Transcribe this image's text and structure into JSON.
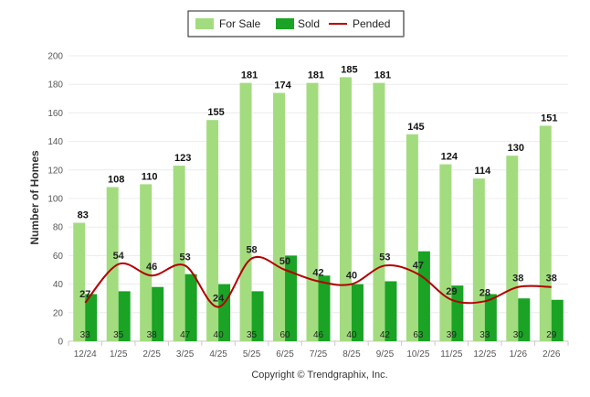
{
  "chart_data": {
    "type": "bar",
    "title": "",
    "xlabel": "",
    "ylabel": "Number of Homes",
    "ylim": [
      0,
      200
    ],
    "yticks": [
      0,
      20,
      40,
      60,
      80,
      100,
      120,
      140,
      160,
      180,
      200
    ],
    "categories": [
      "12/24",
      "1/25",
      "2/25",
      "3/25",
      "4/25",
      "5/25",
      "6/25",
      "7/25",
      "8/25",
      "9/25",
      "10/25",
      "11/25",
      "12/25",
      "1/26",
      "2/26"
    ],
    "series": [
      {
        "name": "For Sale",
        "type": "bar",
        "color": "#a3dc7f",
        "values": [
          83,
          108,
          110,
          123,
          155,
          181,
          174,
          181,
          185,
          181,
          145,
          124,
          114,
          130,
          151
        ]
      },
      {
        "name": "Sold",
        "type": "bar",
        "color": "#1aa325",
        "values": [
          33,
          35,
          38,
          47,
          40,
          35,
          60,
          46,
          40,
          42,
          63,
          39,
          33,
          30,
          29
        ]
      },
      {
        "name": "Pended",
        "type": "line",
        "color": "#b30000",
        "values": [
          27,
          54,
          46,
          53,
          24,
          58,
          50,
          42,
          40,
          53,
          47,
          29,
          28,
          38,
          38
        ]
      }
    ],
    "legend": {
      "position": "top-center"
    },
    "grid": true,
    "footer": "Copyright © Trendgraphix, Inc."
  }
}
